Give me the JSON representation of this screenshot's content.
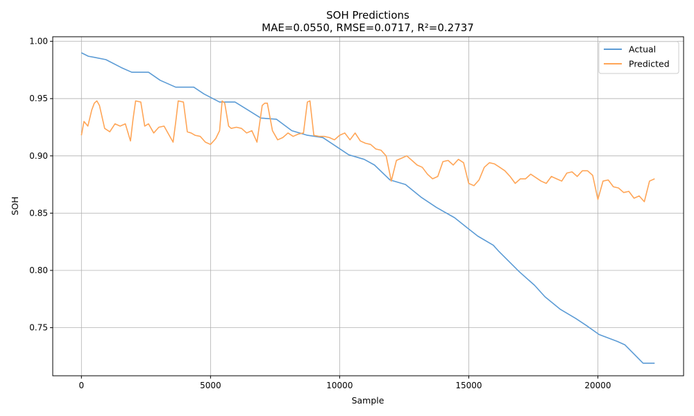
{
  "chart_data": {
    "type": "line",
    "title": "SOH Predictions",
    "subtitle": "MAE=0.0550, RMSE=0.0717, R²=0.2737",
    "xlabel": "Sample",
    "ylabel": "SOH",
    "xlim": [
      -1110,
      23320
    ],
    "ylim": [
      0.708,
      1.004
    ],
    "xticks": [
      0,
      5000,
      10000,
      15000,
      20000
    ],
    "xtick_labels": [
      "0",
      "5000",
      "10000",
      "15000",
      "20000"
    ],
    "yticks": [
      0.75,
      0.8,
      0.85,
      0.9,
      0.95,
      1.0
    ],
    "ytick_labels": [
      "0.75",
      "0.80",
      "0.85",
      "0.90",
      "0.95",
      "1.00"
    ],
    "grid": true,
    "legend_position": "top-right",
    "series": [
      {
        "name": "Actual",
        "color": "#5b9bd5",
        "x": [
          0,
          270,
          500,
          950,
          1550,
          1950,
          2600,
          3050,
          3650,
          4350,
          4750,
          5350,
          5950,
          6450,
          6950,
          7550,
          8150,
          8750,
          9350,
          9750,
          10350,
          10950,
          11350,
          11950,
          12550,
          13150,
          13750,
          14450,
          14950,
          15350,
          15950,
          16150,
          16550,
          16950,
          17550,
          17950,
          18550,
          19150,
          19550,
          20050,
          20750,
          21050,
          21750,
          22200
        ],
        "values": [
          0.99,
          0.987,
          0.986,
          0.984,
          0.977,
          0.973,
          0.973,
          0.966,
          0.96,
          0.96,
          0.954,
          0.947,
          0.947,
          0.94,
          0.933,
          0.932,
          0.922,
          0.918,
          0.916,
          0.91,
          0.901,
          0.897,
          0.892,
          0.879,
          0.875,
          0.864,
          0.855,
          0.846,
          0.837,
          0.83,
          0.822,
          0.817,
          0.808,
          0.799,
          0.787,
          0.777,
          0.766,
          0.758,
          0.752,
          0.744,
          0.738,
          0.735,
          0.719,
          0.719
        ]
      },
      {
        "name": "Predicted",
        "color": "#ffa556",
        "x": [
          0,
          100,
          250,
          400,
          500,
          600,
          700,
          900,
          1100,
          1300,
          1500,
          1700,
          1900,
          2000,
          2100,
          2300,
          2450,
          2600,
          2800,
          3000,
          3200,
          3400,
          3550,
          3650,
          3750,
          3950,
          4100,
          4250,
          4400,
          4600,
          4800,
          5000,
          5200,
          5350,
          5450,
          5550,
          5700,
          5800,
          6000,
          6200,
          6400,
          6600,
          6800,
          7000,
          7100,
          7200,
          7400,
          7600,
          7800,
          8000,
          8200,
          8400,
          8600,
          8750,
          8850,
          9000,
          9200,
          9400,
          9600,
          9800,
          10000,
          10200,
          10400,
          10600,
          10800,
          11000,
          11200,
          11400,
          11600,
          11800,
          12000,
          12200,
          12400,
          12600,
          12800,
          13000,
          13200,
          13400,
          13600,
          13800,
          14000,
          14200,
          14400,
          14600,
          14800,
          15000,
          15200,
          15400,
          15600,
          15800,
          16000,
          16200,
          16400,
          16600,
          16800,
          17000,
          17200,
          17400,
          17600,
          17800,
          18000,
          18200,
          18400,
          18600,
          18800,
          19000,
          19200,
          19400,
          19600,
          19800,
          20000,
          20200,
          20400,
          20600,
          20800,
          21000,
          21200,
          21400,
          21600,
          21800,
          22000,
          22200
        ],
        "values": [
          0.918,
          0.93,
          0.926,
          0.94,
          0.946,
          0.948,
          0.944,
          0.924,
          0.921,
          0.928,
          0.926,
          0.928,
          0.913,
          0.932,
          0.948,
          0.947,
          0.926,
          0.928,
          0.92,
          0.925,
          0.926,
          0.918,
          0.912,
          0.929,
          0.948,
          0.947,
          0.921,
          0.92,
          0.918,
          0.917,
          0.912,
          0.91,
          0.915,
          0.922,
          0.948,
          0.946,
          0.926,
          0.924,
          0.925,
          0.924,
          0.92,
          0.922,
          0.912,
          0.944,
          0.946,
          0.946,
          0.922,
          0.914,
          0.916,
          0.92,
          0.917,
          0.919,
          0.92,
          0.947,
          0.948,
          0.918,
          0.917,
          0.917,
          0.916,
          0.914,
          0.918,
          0.92,
          0.914,
          0.92,
          0.913,
          0.911,
          0.91,
          0.906,
          0.905,
          0.9,
          0.878,
          0.896,
          0.898,
          0.9,
          0.896,
          0.892,
          0.89,
          0.884,
          0.88,
          0.882,
          0.895,
          0.896,
          0.892,
          0.897,
          0.894,
          0.876,
          0.874,
          0.879,
          0.89,
          0.894,
          0.893,
          0.89,
          0.887,
          0.882,
          0.876,
          0.88,
          0.88,
          0.884,
          0.881,
          0.878,
          0.876,
          0.882,
          0.88,
          0.878,
          0.885,
          0.886,
          0.882,
          0.887,
          0.887,
          0.883,
          0.862,
          0.878,
          0.879,
          0.873,
          0.872,
          0.868,
          0.869,
          0.863,
          0.865,
          0.86,
          0.878,
          0.88
        ]
      }
    ]
  }
}
